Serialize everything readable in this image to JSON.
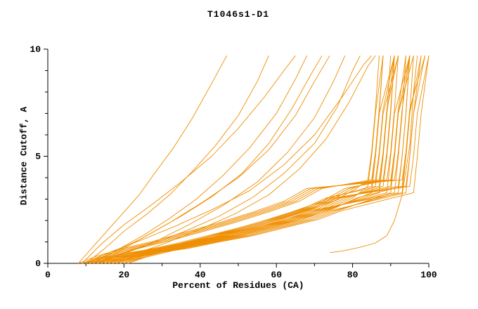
{
  "chart_data": {
    "type": "line",
    "title": "T1046s1-D1",
    "xlabel": "Percent of Residues (CA)",
    "ylabel": "Distance Cutoff, A",
    "xlim": [
      0,
      100
    ],
    "ylim": [
      0,
      10
    ],
    "x_major_ticks": [
      0,
      20,
      40,
      60,
      80,
      100
    ],
    "x_minor_step": 10,
    "y_major_ticks": [
      0,
      5,
      10
    ],
    "y_minor_step": 1,
    "grid": false,
    "legend": "none",
    "line_color": "#ef8e00",
    "axis_color": "#000000",
    "series": [
      {
        "x": [
          13,
          18,
          25,
          33,
          41,
          50,
          59,
          67,
          73,
          87,
          88,
          89,
          90
        ],
        "y": [
          0,
          0.3,
          0.6,
          0.9,
          1.25,
          1.65,
          2.1,
          2.55,
          3.05,
          3.6,
          5.0,
          7.0,
          9.7
        ]
      },
      {
        "x": [
          18,
          23,
          30,
          38,
          46,
          55,
          64,
          72,
          78,
          90,
          91,
          92,
          94
        ],
        "y": [
          0,
          0.35,
          0.7,
          1.05,
          1.45,
          1.9,
          2.4,
          2.9,
          3.5,
          3.9,
          5.2,
          7.2,
          9.7
        ]
      },
      {
        "x": [
          9,
          14,
          21,
          29,
          37,
          46,
          55,
          63,
          69,
          93,
          94,
          95,
          98
        ],
        "y": [
          0,
          0.25,
          0.5,
          0.7,
          1.0,
          1.3,
          1.7,
          2.05,
          2.45,
          3.3,
          5.0,
          7.0,
          9.7
        ]
      },
      {
        "x": [
          14,
          19,
          26,
          34,
          42,
          51,
          60,
          68,
          74,
          85,
          86,
          87,
          91
        ],
        "y": [
          0,
          0.3,
          0.6,
          0.9,
          1.25,
          1.65,
          2.1,
          2.55,
          3.05,
          3.6,
          5.0,
          7.0,
          9.7
        ]
      },
      {
        "x": [
          19,
          24,
          31,
          39,
          47,
          56,
          65,
          73,
          79,
          88,
          89,
          90,
          91
        ],
        "y": [
          0,
          0.35,
          0.7,
          1.05,
          1.45,
          1.9,
          2.4,
          2.9,
          3.5,
          3.9,
          5.2,
          7.2,
          9.7
        ]
      },
      {
        "x": [
          10,
          15,
          22,
          30,
          38,
          47,
          56,
          64,
          70,
          91,
          92,
          93,
          94
        ],
        "y": [
          0,
          0.25,
          0.5,
          0.7,
          1.0,
          1.3,
          1.7,
          2.05,
          2.45,
          3.3,
          5.0,
          7.0,
          9.7
        ]
      },
      {
        "x": [
          15,
          20,
          27,
          35,
          43,
          52,
          61,
          69,
          75,
          94,
          95,
          96,
          98
        ],
        "y": [
          0,
          0.3,
          0.6,
          0.9,
          1.25,
          1.65,
          2.1,
          2.55,
          3.05,
          3.6,
          5.0,
          7.0,
          9.7
        ]
      },
      {
        "x": [
          20,
          25,
          32,
          40,
          48,
          57,
          66,
          74,
          80,
          86,
          87,
          88,
          91
        ],
        "y": [
          0,
          0.35,
          0.7,
          1.05,
          1.45,
          1.9,
          2.4,
          2.9,
          3.5,
          3.9,
          5.2,
          7.2,
          9.7
        ]
      },
      {
        "x": [
          11,
          16,
          23,
          31,
          39,
          48,
          57,
          65,
          71,
          89,
          90,
          91,
          95
        ],
        "y": [
          0,
          0.25,
          0.5,
          0.7,
          1.0,
          1.3,
          1.7,
          2.05,
          2.45,
          3.3,
          5.0,
          7.0,
          9.7
        ]
      },
      {
        "x": [
          16,
          21,
          28,
          36,
          44,
          53,
          62,
          70,
          76,
          92,
          93,
          94,
          95
        ],
        "y": [
          0,
          0.3,
          0.6,
          0.9,
          1.25,
          1.65,
          2.1,
          2.55,
          3.05,
          3.6,
          5.0,
          7.0,
          9.7
        ]
      },
      {
        "x": [
          21,
          26,
          33,
          41,
          49,
          58,
          67,
          75,
          81,
          84,
          85,
          86,
          87
        ],
        "y": [
          0,
          0.35,
          0.7,
          1.05,
          1.45,
          1.9,
          2.4,
          2.9,
          3.5,
          3.9,
          5.2,
          7.2,
          9.7
        ]
      },
      {
        "x": [
          12,
          17,
          24,
          32,
          40,
          49,
          58,
          66,
          72,
          87,
          88,
          89,
          91
        ],
        "y": [
          0,
          0.25,
          0.5,
          0.7,
          1.0,
          1.3,
          1.7,
          2.05,
          2.45,
          3.3,
          5.0,
          7.0,
          9.7
        ]
      },
      {
        "x": [
          17,
          22,
          29,
          37,
          45,
          54,
          63,
          71,
          77,
          90,
          91,
          92,
          95
        ],
        "y": [
          0,
          0.3,
          0.6,
          0.9,
          1.25,
          1.65,
          2.1,
          2.55,
          3.05,
          3.6,
          5.0,
          7.0,
          9.7
        ]
      },
      {
        "x": [
          8,
          13,
          20,
          28,
          36,
          45,
          54,
          62,
          68,
          93,
          94,
          95,
          99
        ],
        "y": [
          0,
          0.35,
          0.7,
          1.05,
          1.45,
          1.9,
          2.4,
          2.9,
          3.5,
          3.9,
          5.2,
          7.2,
          9.7
        ]
      },
      {
        "x": [
          13,
          18,
          25,
          33,
          41,
          50,
          59,
          67,
          73,
          85,
          86,
          87,
          88
        ],
        "y": [
          0,
          0.25,
          0.5,
          0.7,
          1.0,
          1.3,
          1.7,
          2.05,
          2.45,
          3.3,
          5.0,
          7.0,
          9.7
        ]
      },
      {
        "x": [
          18,
          23,
          30,
          38,
          46,
          55,
          64,
          72,
          78,
          88,
          89,
          90,
          91
        ],
        "y": [
          0,
          0.3,
          0.6,
          0.9,
          1.25,
          1.65,
          2.1,
          2.55,
          3.05,
          3.6,
          5.0,
          7.0,
          9.7
        ]
      },
      {
        "x": [
          9,
          14,
          21,
          29,
          37,
          46,
          55,
          63,
          69,
          91,
          92,
          93,
          95
        ],
        "y": [
          0,
          0.35,
          0.7,
          1.05,
          1.45,
          1.9,
          2.4,
          2.9,
          3.5,
          3.9,
          5.2,
          7.2,
          9.7
        ]
      },
      {
        "x": [
          14,
          19,
          26,
          34,
          42,
          51,
          60,
          68,
          74,
          94,
          95,
          96,
          99
        ],
        "y": [
          0,
          0.25,
          0.5,
          0.7,
          1.0,
          1.3,
          1.7,
          2.05,
          2.45,
          3.3,
          5.0,
          7.0,
          9.7
        ]
      },
      {
        "x": [
          19,
          24,
          31,
          39,
          47,
          56,
          65,
          73,
          79,
          86,
          87,
          88,
          92
        ],
        "y": [
          0,
          0.3,
          0.6,
          0.9,
          1.25,
          1.65,
          2.1,
          2.55,
          3.05,
          3.6,
          5.0,
          7.0,
          9.7
        ]
      },
      {
        "x": [
          10,
          15,
          22,
          30,
          38,
          47,
          56,
          64,
          70,
          89,
          90,
          91,
          92
        ],
        "y": [
          0,
          0.35,
          0.7,
          1.05,
          1.45,
          1.9,
          2.4,
          2.9,
          3.5,
          3.9,
          5.2,
          7.2,
          9.7
        ]
      },
      {
        "x": [
          15,
          20,
          27,
          35,
          43,
          52,
          61,
          69,
          75,
          92,
          93,
          94,
          95
        ],
        "y": [
          0,
          0.25,
          0.5,
          0.7,
          1.0,
          1.3,
          1.7,
          2.05,
          2.45,
          3.3,
          5.0,
          7.0,
          9.7
        ]
      },
      {
        "x": [
          20,
          25,
          32,
          40,
          48,
          57,
          66,
          74,
          80,
          84,
          85,
          86,
          88
        ],
        "y": [
          0,
          0.3,
          0.6,
          0.9,
          1.25,
          1.65,
          2.1,
          2.55,
          3.05,
          3.6,
          5.0,
          7.0,
          9.7
        ]
      },
      {
        "x": [
          11,
          16,
          23,
          31,
          39,
          48,
          57,
          65,
          71,
          87,
          88,
          89,
          92
        ],
        "y": [
          0,
          0.35,
          0.7,
          1.05,
          1.45,
          1.9,
          2.4,
          2.9,
          3.5,
          3.9,
          5.2,
          7.2,
          9.7
        ]
      },
      {
        "x": [
          16,
          21,
          28,
          36,
          44,
          53,
          62,
          70,
          76,
          90,
          91,
          92,
          96
        ],
        "y": [
          0,
          0.25,
          0.5,
          0.7,
          1.0,
          1.3,
          1.7,
          2.05,
          2.45,
          3.3,
          5.0,
          7.0,
          9.7
        ]
      },
      {
        "x": [
          21,
          26,
          33,
          41,
          49,
          58,
          67,
          75,
          81,
          93,
          94,
          95,
          96
        ],
        "y": [
          0,
          0.3,
          0.6,
          0.9,
          1.25,
          1.65,
          2.1,
          2.55,
          3.05,
          3.6,
          5.0,
          7.0,
          9.7
        ]
      },
      {
        "x": [
          12,
          17,
          24,
          32,
          40,
          49,
          58,
          66,
          72,
          85,
          86,
          87,
          88
        ],
        "y": [
          0,
          0.35,
          0.7,
          1.05,
          1.45,
          1.9,
          2.4,
          2.9,
          3.5,
          3.9,
          5.2,
          7.2,
          9.7
        ]
      },
      {
        "x": [
          15,
          20,
          27,
          35,
          43,
          52,
          61,
          69,
          75,
          95,
          96,
          97,
          100
        ],
        "y": [
          0,
          0.3,
          0.6,
          0.9,
          1.25,
          1.65,
          2.1,
          2.55,
          3.05,
          3.6,
          5.0,
          7.0,
          9.7
        ]
      },
      {
        "x": [
          17,
          22,
          29,
          37,
          45,
          54,
          63,
          71,
          77,
          96,
          97,
          98,
          100
        ],
        "y": [
          0,
          0.25,
          0.5,
          0.7,
          1.0,
          1.3,
          1.7,
          2.05,
          2.45,
          3.3,
          5.0,
          7.0,
          9.7
        ]
      },
      {
        "x": [
          8,
          12,
          16,
          20,
          24,
          28,
          33,
          38,
          43,
          47
        ],
        "y": [
          0,
          0.8,
          1.6,
          2.4,
          3.2,
          4.2,
          5.4,
          6.8,
          8.4,
          9.7
        ]
      },
      {
        "x": [
          10,
          15,
          20,
          26,
          32,
          38,
          44,
          50,
          55,
          58
        ],
        "y": [
          0,
          0.7,
          1.5,
          2.3,
          3.2,
          4.3,
          5.5,
          6.9,
          8.5,
          9.7
        ]
      },
      {
        "x": [
          12,
          18,
          25,
          32,
          39,
          46,
          53,
          60,
          65,
          68
        ],
        "y": [
          0,
          0.6,
          1.3,
          2.1,
          3.0,
          4.1,
          5.4,
          7.0,
          8.6,
          9.7
        ]
      },
      {
        "x": [
          9,
          14,
          20,
          27,
          35,
          43,
          50,
          57,
          62,
          65
        ],
        "y": [
          0,
          0.9,
          1.8,
          2.7,
          3.8,
          5.0,
          6.3,
          7.8,
          9.0,
          9.7
        ]
      },
      {
        "x": [
          14,
          20,
          27,
          35,
          43,
          51,
          58,
          64,
          69,
          72
        ],
        "y": [
          0,
          0.7,
          1.4,
          2.2,
          3.1,
          4.2,
          5.6,
          7.2,
          8.8,
          9.7
        ]
      },
      {
        "x": [
          11,
          17,
          24,
          32,
          41,
          50,
          58,
          65,
          70,
          74
        ],
        "y": [
          0,
          0.5,
          1.1,
          1.9,
          2.9,
          4.0,
          5.3,
          6.9,
          8.5,
          9.7
        ]
      },
      {
        "x": [
          13,
          20,
          28,
          37,
          46,
          55,
          63,
          70,
          75,
          78
        ],
        "y": [
          0,
          0.5,
          1.0,
          1.8,
          2.7,
          3.8,
          5.2,
          6.8,
          8.5,
          9.7
        ]
      },
      {
        "x": [
          12,
          19,
          27,
          36,
          45,
          54,
          62,
          70,
          76,
          80,
          82
        ],
        "y": [
          0,
          0.4,
          0.9,
          1.5,
          2.2,
          3.1,
          4.2,
          5.6,
          7.3,
          9.0,
          9.7
        ]
      },
      {
        "x": [
          16,
          23,
          31,
          40,
          49,
          58,
          66,
          73,
          79,
          84,
          86
        ],
        "y": [
          0,
          0.45,
          0.95,
          1.6,
          2.3,
          3.2,
          4.4,
          5.8,
          7.5,
          9.2,
          9.7
        ]
      },
      {
        "x": [
          10,
          16,
          24,
          33,
          43,
          53,
          62,
          70,
          77,
          83,
          85
        ],
        "y": [
          0,
          0.5,
          1.05,
          1.7,
          2.5,
          3.4,
          4.6,
          6.0,
          7.7,
          9.3,
          9.7
        ]
      },
      {
        "x": [
          74,
          78,
          82,
          86,
          89,
          91,
          93,
          95,
          96,
          97
        ],
        "y": [
          0.5,
          0.6,
          0.75,
          0.95,
          1.3,
          2.0,
          3.2,
          5.5,
          8.0,
          9.7
        ]
      }
    ]
  }
}
